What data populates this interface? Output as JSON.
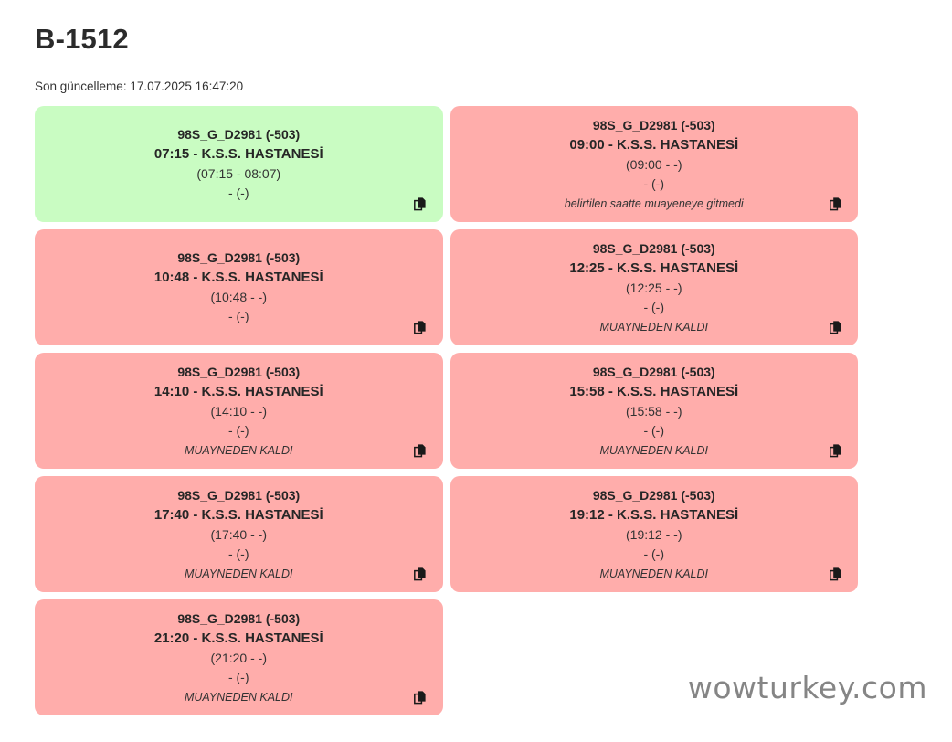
{
  "page": {
    "title": "B-1512",
    "last_update": "Son güncelleme: 17.07.2025 16:47:20",
    "watermark": "wowturkey.com"
  },
  "colors": {
    "completed_bg": "#c9fcc2",
    "missed_bg": "#ffadab",
    "text": "#2f2f2f",
    "icon": "#1a1a1a",
    "watermark": "#858585"
  },
  "icons": {
    "copy": "copy-pages-icon"
  },
  "cards": [
    {
      "status": "completed",
      "vehicle": "98S_G_D2981 (-503)",
      "trip": "07:15 - K.S.S. HASTANESİ",
      "time_window": "(07:15 - 08:07)",
      "detail": "- (-)",
      "note": ""
    },
    {
      "status": "missed",
      "vehicle": "98S_G_D2981 (-503)",
      "trip": "09:00 - K.S.S. HASTANESİ",
      "time_window": "(09:00 - -)",
      "detail": "- (-)",
      "note": "belirtilen saatte muayeneye gitmedi"
    },
    {
      "status": "missed",
      "vehicle": "98S_G_D2981 (-503)",
      "trip": "10:48 - K.S.S. HASTANESİ",
      "time_window": "(10:48 - -)",
      "detail": "- (-)",
      "note": ""
    },
    {
      "status": "missed",
      "vehicle": "98S_G_D2981 (-503)",
      "trip": "12:25 - K.S.S. HASTANESİ",
      "time_window": "(12:25 - -)",
      "detail": "- (-)",
      "note": "MUAYNEDEN KALDI"
    },
    {
      "status": "missed",
      "vehicle": "98S_G_D2981 (-503)",
      "trip": "14:10 - K.S.S. HASTANESİ",
      "time_window": "(14:10 - -)",
      "detail": "- (-)",
      "note": "MUAYNEDEN KALDI"
    },
    {
      "status": "missed",
      "vehicle": "98S_G_D2981 (-503)",
      "trip": "15:58 - K.S.S. HASTANESİ",
      "time_window": "(15:58 - -)",
      "detail": "- (-)",
      "note": "MUAYNEDEN KALDI"
    },
    {
      "status": "missed",
      "vehicle": "98S_G_D2981 (-503)",
      "trip": "17:40 - K.S.S. HASTANESİ",
      "time_window": "(17:40 - -)",
      "detail": "- (-)",
      "note": "MUAYNEDEN KALDI"
    },
    {
      "status": "missed",
      "vehicle": "98S_G_D2981 (-503)",
      "trip": "19:12 - K.S.S. HASTANESİ",
      "time_window": "(19:12 - -)",
      "detail": "- (-)",
      "note": "MUAYNEDEN KALDI"
    },
    {
      "status": "missed",
      "vehicle": "98S_G_D2981 (-503)",
      "trip": "21:20 - K.S.S. HASTANESİ",
      "time_window": "(21:20 - -)",
      "detail": "- (-)",
      "note": "MUAYNEDEN KALDI"
    }
  ]
}
